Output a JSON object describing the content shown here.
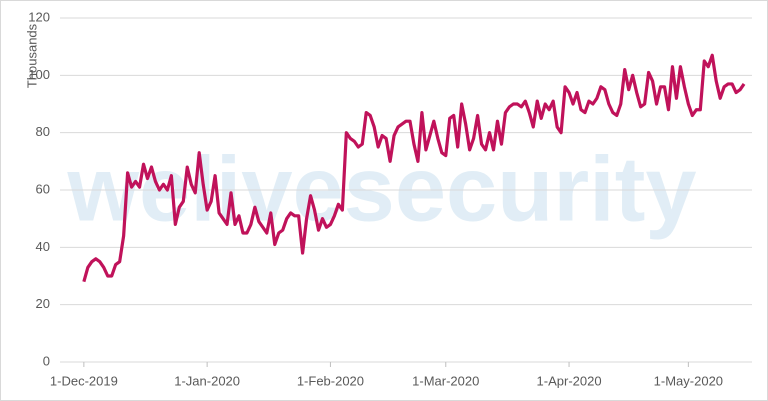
{
  "chart_data": {
    "type": "line",
    "y_label": "Thousands",
    "watermark": "welivesecurity",
    "x": [
      "2019-12-01",
      "2019-12-02",
      "2019-12-03",
      "2019-12-04",
      "2019-12-05",
      "2019-12-06",
      "2019-12-07",
      "2019-12-08",
      "2019-12-09",
      "2019-12-10",
      "2019-12-11",
      "2019-12-12",
      "2019-12-13",
      "2019-12-14",
      "2019-12-15",
      "2019-12-16",
      "2019-12-17",
      "2019-12-18",
      "2019-12-19",
      "2019-12-20",
      "2019-12-21",
      "2019-12-22",
      "2019-12-23",
      "2019-12-24",
      "2019-12-25",
      "2019-12-26",
      "2019-12-27",
      "2019-12-28",
      "2019-12-29",
      "2019-12-30",
      "2019-12-31",
      "2020-01-01",
      "2020-01-02",
      "2020-01-03",
      "2020-01-04",
      "2020-01-05",
      "2020-01-06",
      "2020-01-07",
      "2020-01-08",
      "2020-01-09",
      "2020-01-10",
      "2020-01-11",
      "2020-01-12",
      "2020-01-13",
      "2020-01-14",
      "2020-01-15",
      "2020-01-16",
      "2020-01-17",
      "2020-01-18",
      "2020-01-19",
      "2020-01-20",
      "2020-01-21",
      "2020-01-22",
      "2020-01-23",
      "2020-01-24",
      "2020-01-25",
      "2020-01-26",
      "2020-01-27",
      "2020-01-28",
      "2020-01-29",
      "2020-01-30",
      "2020-01-31",
      "2020-02-01",
      "2020-02-02",
      "2020-02-03",
      "2020-02-04",
      "2020-02-05",
      "2020-02-06",
      "2020-02-07",
      "2020-02-08",
      "2020-02-09",
      "2020-02-10",
      "2020-02-11",
      "2020-02-12",
      "2020-02-13",
      "2020-02-14",
      "2020-02-15",
      "2020-02-16",
      "2020-02-17",
      "2020-02-18",
      "2020-02-19",
      "2020-02-20",
      "2020-02-21",
      "2020-02-22",
      "2020-02-23",
      "2020-02-24",
      "2020-02-25",
      "2020-02-26",
      "2020-02-27",
      "2020-02-28",
      "2020-02-29",
      "2020-03-01",
      "2020-03-02",
      "2020-03-03",
      "2020-03-04",
      "2020-03-05",
      "2020-03-06",
      "2020-03-07",
      "2020-03-08",
      "2020-03-09",
      "2020-03-10",
      "2020-03-11",
      "2020-03-12",
      "2020-03-13",
      "2020-03-14",
      "2020-03-15",
      "2020-03-16",
      "2020-03-17",
      "2020-03-18",
      "2020-03-19",
      "2020-03-20",
      "2020-03-21",
      "2020-03-22",
      "2020-03-23",
      "2020-03-24",
      "2020-03-25",
      "2020-03-26",
      "2020-03-27",
      "2020-03-28",
      "2020-03-29",
      "2020-03-30",
      "2020-03-31",
      "2020-04-01",
      "2020-04-02",
      "2020-04-03",
      "2020-04-04",
      "2020-04-05",
      "2020-04-06",
      "2020-04-07",
      "2020-04-08",
      "2020-04-09",
      "2020-04-10",
      "2020-04-11",
      "2020-04-12",
      "2020-04-13",
      "2020-04-14",
      "2020-04-15",
      "2020-04-16",
      "2020-04-17",
      "2020-04-18",
      "2020-04-19",
      "2020-04-20",
      "2020-04-21",
      "2020-04-22",
      "2020-04-23",
      "2020-04-24",
      "2020-04-25",
      "2020-04-26",
      "2020-04-27",
      "2020-04-28",
      "2020-04-29",
      "2020-04-30",
      "2020-05-01",
      "2020-05-02",
      "2020-05-03",
      "2020-05-04",
      "2020-05-05",
      "2020-05-06",
      "2020-05-07",
      "2020-05-08",
      "2020-05-09",
      "2020-05-10",
      "2020-05-11",
      "2020-05-12",
      "2020-05-13",
      "2020-05-14",
      "2020-05-15"
    ],
    "series": [
      {
        "color": "#c0125a",
        "values": [
          28,
          33,
          35,
          36,
          35,
          33,
          30,
          30,
          34,
          35,
          44,
          66,
          61,
          63,
          61,
          69,
          64,
          68,
          63,
          60,
          62,
          60,
          65,
          48,
          54,
          56,
          68,
          62,
          59,
          73,
          62,
          53,
          56,
          65,
          52,
          50,
          48,
          59,
          48,
          51,
          45,
          45,
          48,
          54,
          49,
          47,
          45,
          52,
          41,
          45,
          46,
          50,
          52,
          51,
          51,
          38,
          50,
          58,
          53,
          46,
          50,
          47,
          48,
          51,
          55,
          53,
          80,
          78,
          77,
          75,
          76,
          87,
          86,
          82,
          75,
          79,
          78,
          70,
          79,
          82,
          83,
          84,
          84,
          76,
          70,
          87,
          74,
          79,
          84,
          78,
          73,
          72,
          85,
          86,
          75,
          90,
          83,
          74,
          78,
          86,
          76,
          74,
          80,
          74,
          84,
          76,
          87,
          89,
          90,
          90,
          89,
          91,
          87,
          82,
          91,
          85,
          90,
          88,
          91,
          82,
          80,
          96,
          94,
          90,
          94,
          88,
          87,
          91,
          90,
          92,
          96,
          95,
          90,
          87,
          86,
          90,
          102,
          95,
          100,
          94,
          89,
          90,
          101,
          98,
          90,
          96,
          96,
          88,
          103,
          92,
          103,
          96,
          90,
          86,
          88,
          88,
          105,
          103,
          107,
          98,
          92,
          96,
          97,
          97,
          94,
          95,
          97
        ]
      }
    ],
    "xlim": [
      "2019-11-25",
      "2020-05-17"
    ],
    "xticks": [
      {
        "value": "2019-12-01",
        "label": "1-Dec-2019"
      },
      {
        "value": "2020-01-01",
        "label": "1-Jan-2020"
      },
      {
        "value": "2020-02-01",
        "label": "1-Feb-2020"
      },
      {
        "value": "2020-03-01",
        "label": "1-Mar-2020"
      },
      {
        "value": "2020-04-01",
        "label": "1-Apr-2020"
      },
      {
        "value": "2020-05-01",
        "label": "1-May-2020"
      }
    ],
    "ylim": [
      0,
      120
    ],
    "yticks": [
      0,
      20,
      40,
      60,
      80,
      100,
      120
    ],
    "grid": true
  }
}
